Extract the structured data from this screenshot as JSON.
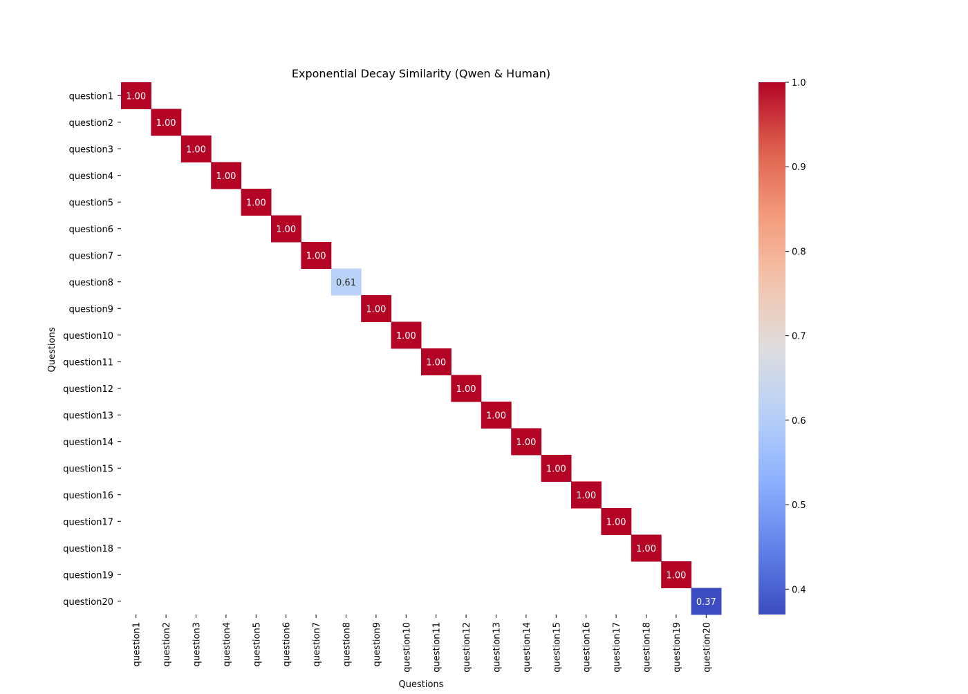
{
  "chart_data": {
    "type": "heatmap",
    "title": "Exponential Decay Similarity (Qwen & Human)",
    "xlabel": "Questions",
    "ylabel": "Questions",
    "x_categories": [
      "question1",
      "question2",
      "question3",
      "question4",
      "question5",
      "question6",
      "question7",
      "question8",
      "question9",
      "question10",
      "question11",
      "question12",
      "question13",
      "question14",
      "question15",
      "question16",
      "question17",
      "question18",
      "question19",
      "question20"
    ],
    "y_categories": [
      "question1",
      "question2",
      "question3",
      "question4",
      "question5",
      "question6",
      "question7",
      "question8",
      "question9",
      "question10",
      "question11",
      "question12",
      "question13",
      "question14",
      "question15",
      "question16",
      "question17",
      "question18",
      "question19",
      "question20"
    ],
    "cells": [
      {
        "x": "question1",
        "y": "question1",
        "value": 1.0
      },
      {
        "x": "question2",
        "y": "question2",
        "value": 1.0
      },
      {
        "x": "question3",
        "y": "question3",
        "value": 1.0
      },
      {
        "x": "question4",
        "y": "question4",
        "value": 1.0
      },
      {
        "x": "question5",
        "y": "question5",
        "value": 1.0
      },
      {
        "x": "question6",
        "y": "question6",
        "value": 1.0
      },
      {
        "x": "question7",
        "y": "question7",
        "value": 1.0
      },
      {
        "x": "question8",
        "y": "question8",
        "value": 0.61
      },
      {
        "x": "question9",
        "y": "question9",
        "value": 1.0
      },
      {
        "x": "question10",
        "y": "question10",
        "value": 1.0
      },
      {
        "x": "question11",
        "y": "question11",
        "value": 1.0
      },
      {
        "x": "question12",
        "y": "question12",
        "value": 1.0
      },
      {
        "x": "question13",
        "y": "question13",
        "value": 1.0
      },
      {
        "x": "question14",
        "y": "question14",
        "value": 1.0
      },
      {
        "x": "question15",
        "y": "question15",
        "value": 1.0
      },
      {
        "x": "question16",
        "y": "question16",
        "value": 1.0
      },
      {
        "x": "question17",
        "y": "question17",
        "value": 1.0
      },
      {
        "x": "question18",
        "y": "question18",
        "value": 1.0
      },
      {
        "x": "question19",
        "y": "question19",
        "value": 1.0
      },
      {
        "x": "question20",
        "y": "question20",
        "value": 0.37
      }
    ],
    "colormap": "coolwarm",
    "colorbar": {
      "range": [
        0.37,
        1.0
      ],
      "ticks": [
        0.4,
        0.5,
        0.6,
        0.7,
        0.8,
        0.9,
        1.0
      ],
      "tick_labels": [
        "0.4",
        "0.5",
        "0.6",
        "0.7",
        "0.8",
        "0.9",
        "1.0"
      ],
      "placement": "right"
    },
    "grid": false
  }
}
